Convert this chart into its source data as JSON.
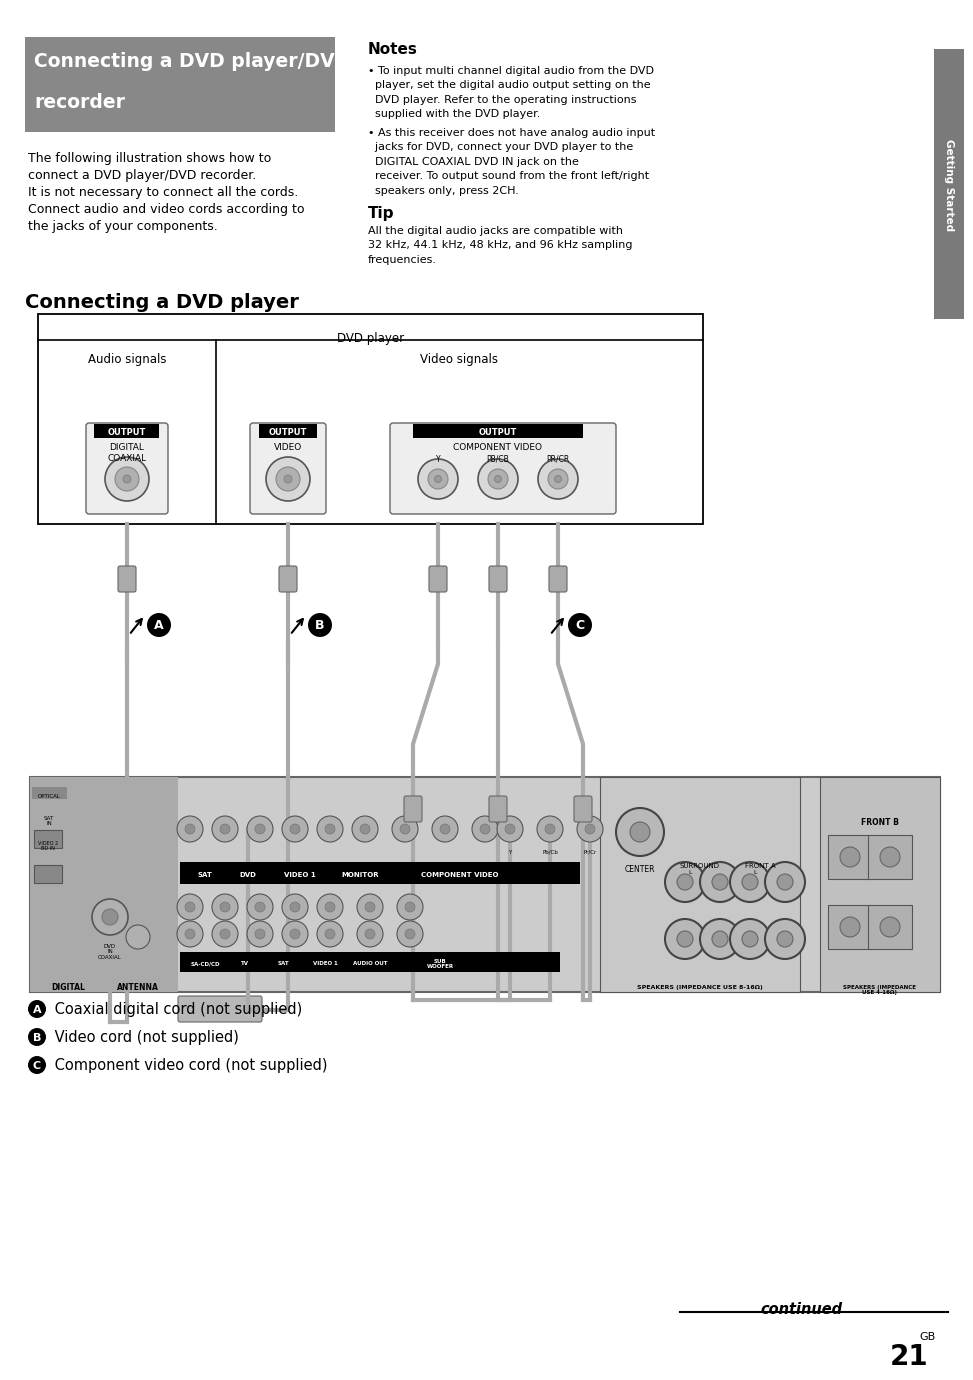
{
  "page_bg": "#ffffff",
  "header_bg": "#888888",
  "header_text_line1": "Connecting a DVD player/DVD",
  "header_text_line2": "recorder",
  "left_para_lines": [
    "The following illustration shows how to",
    "connect a DVD player/DVD recorder.",
    "It is not necessary to connect all the cords.",
    "Connect audio and video cords according to",
    "the jacks of your components."
  ],
  "notes_title": "Notes",
  "note1_lines": [
    "• To input multi channel digital audio from the DVD",
    "  player, set the digital audio output setting on the",
    "  DVD player. Refer to the operating instructions",
    "  supplied with the DVD player."
  ],
  "note2_lines": [
    "• As this receiver does not have analog audio input",
    "  jacks for DVD, connect your DVD player to the",
    "  DIGITAL COAXIAL DVD IN jack on the",
    "  receiver. To output sound from the front left/right",
    "  speakers only, press 2CH."
  ],
  "tip_title": "Tip",
  "tip_lines": [
    "All the digital audio jacks are compatible with",
    "32 kHz, 44.1 kHz, 48 kHz, and 96 kHz sampling",
    "frequencies."
  ],
  "side_label": "Getting Started",
  "side_bg": "#7a7a7a",
  "section2_title": "Connecting a DVD player",
  "legend_a": " Coaxial digital cord (not supplied)",
  "legend_b": " Video cord (not supplied)",
  "legend_c": " Component video cord (not supplied)",
  "continued_text": "continued",
  "page_number": "21",
  "page_suffix": "GB",
  "cable_color": "#aaaaaa",
  "cable_lw": 3,
  "box_edge": "#000000",
  "jack_outer": "#bbbbbb",
  "jack_inner": "#999999",
  "recv_bg": "#cccccc",
  "recv_dark": "#aaaaaa",
  "spk_color": "#c0c0c0"
}
